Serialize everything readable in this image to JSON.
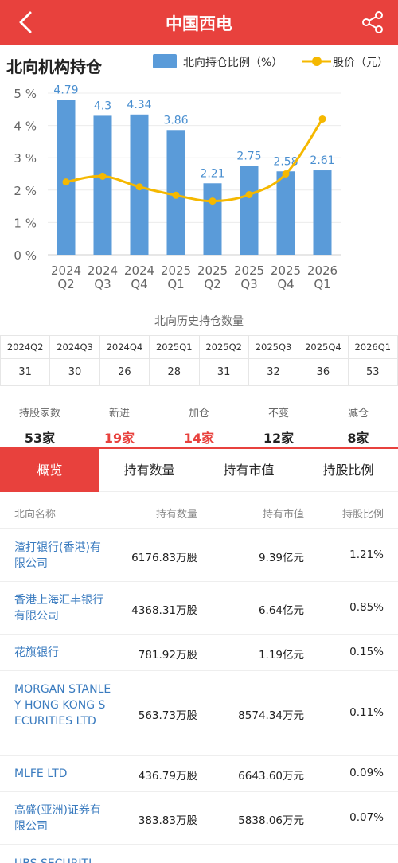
{
  "app": {
    "title": "中国西电",
    "back_icon": "chevron-left-icon",
    "share_icon": "share-icon"
  },
  "colors": {
    "brand": "#e8413d",
    "bar": "#5a9bd9",
    "line": "#f5b800",
    "up": "#e8413d",
    "link": "#3a7bbf"
  },
  "section": {
    "title": "北向机构持仓",
    "legend_bar": "北向持仓比例（%）",
    "legend_line": "股价（元）"
  },
  "chart_data": {
    "type": "bar",
    "categories": [
      "2024\nQ2",
      "2024\nQ3",
      "2024\nQ4",
      "2025\nQ1",
      "2025\nQ2",
      "2025\nQ3",
      "2025\nQ4",
      "2026\nQ1"
    ],
    "series": [
      {
        "name": "北向持仓比例（%）",
        "type": "bar",
        "values": [
          4.79,
          4.3,
          4.34,
          3.86,
          2.21,
          2.75,
          2.58,
          2.61
        ],
        "labels": [
          "4.79",
          "4.3",
          "4.34",
          "3.86",
          "2.21",
          "2.75",
          "2.58",
          "2.61"
        ]
      },
      {
        "name": "股价（元）",
        "type": "line",
        "values": [
          2.25,
          2.43,
          2.1,
          1.84,
          1.66,
          1.86,
          2.5,
          4.2
        ]
      }
    ],
    "yticks": [
      "0 %",
      "1 %",
      "2 %",
      "3 %",
      "4 %",
      "5 %"
    ],
    "ylim": [
      0,
      5
    ],
    "grid": true,
    "legend": "top-right"
  },
  "history": {
    "title": "北向历史持仓数量",
    "quarters": [
      "2024Q2",
      "2024Q3",
      "2024Q4",
      "2025Q1",
      "2025Q2",
      "2025Q3",
      "2025Q4",
      "2026Q1"
    ],
    "counts": [
      "31",
      "30",
      "26",
      "28",
      "31",
      "32",
      "36",
      "53"
    ]
  },
  "stats": [
    {
      "label": "持股家数",
      "value": "53家",
      "color": "#222222"
    },
    {
      "label": "新进",
      "value": "19家",
      "color": "#e8413d"
    },
    {
      "label": "加仓",
      "value": "14家",
      "color": "#e8413d"
    },
    {
      "label": "不变",
      "value": "12家",
      "color": "#222222"
    },
    {
      "label": "减仓",
      "value": "8家",
      "color": "#222222"
    }
  ],
  "tabs": [
    "概览",
    "持有数量",
    "持有市值",
    "持股比例"
  ],
  "table": {
    "headers": [
      "北向名称",
      "持有数量",
      "持有市值",
      "持股比例"
    ],
    "rows": [
      {
        "name": "渣打银行(香港)有限公司",
        "qty": "6176.83万股",
        "value": "9.39亿元",
        "pct": "1.21%"
      },
      {
        "name": "香港上海汇丰银行有限公司",
        "qty": "4368.31万股",
        "value": "6.64亿元",
        "pct": "0.85%"
      },
      {
        "name": "花旗银行",
        "qty": "781.92万股",
        "value": "1.19亿元",
        "pct": "0.15%"
      },
      {
        "name": "MORGAN STANLEY HONG KONG SECURITIES LTD",
        "qty": "563.73万股",
        "value": "8574.34万元",
        "pct": "0.11%"
      },
      {
        "name": "MLFE LTD",
        "qty": "436.79万股",
        "value": "6643.60万元",
        "pct": "0.09%"
      },
      {
        "name": "高盛(亚洲)证券有限公司",
        "qty": "383.83万股",
        "value": "5838.06万元",
        "pct": "0.07%"
      },
      {
        "name": "UBS SECURITI",
        "qty": "",
        "value": "",
        "pct": ""
      }
    ]
  }
}
